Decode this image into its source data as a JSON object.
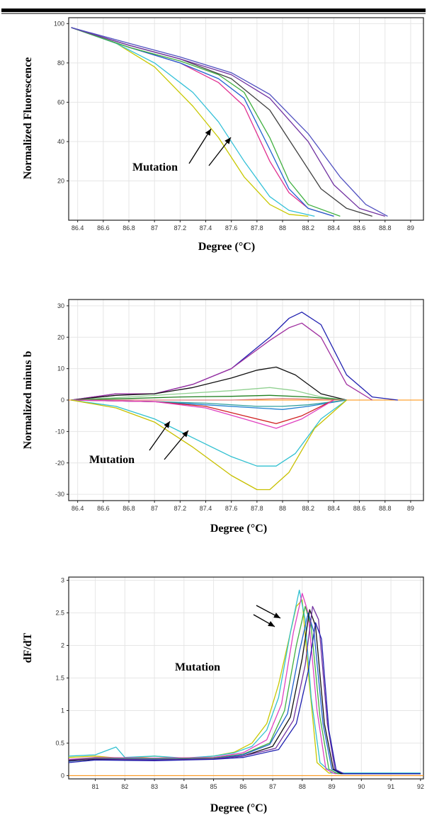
{
  "chart_data": [
    {
      "type": "line",
      "ylabel": "Normalized Fluorescence",
      "xlabel": "Degree (°C)",
      "xlim": [
        86.33,
        89.1
      ],
      "ylim": [
        0,
        103
      ],
      "xticks": [
        "86.4",
        "86.6",
        "86.8",
        "87",
        "87.2",
        "87.4",
        "87.6",
        "87.8",
        "88",
        "88.2",
        "88.4",
        "88.6",
        "88.8",
        "89"
      ],
      "yticks": [
        "20",
        "40",
        "60",
        "80",
        "100"
      ],
      "grid": true,
      "annotation": "Mutation",
      "series": [
        {
          "color": "#c8c800",
          "x": [
            86.35,
            86.7,
            87.0,
            87.3,
            87.5,
            87.7,
            87.9,
            88.05,
            88.2
          ],
          "y": [
            98,
            90,
            78,
            58,
            42,
            22,
            8,
            3,
            2
          ]
        },
        {
          "color": "#33c0d8",
          "x": [
            86.35,
            86.7,
            87.0,
            87.3,
            87.5,
            87.7,
            87.9,
            88.05,
            88.25
          ],
          "y": [
            98,
            90,
            80,
            65,
            50,
            30,
            12,
            5,
            2
          ]
        },
        {
          "color": "#e03090",
          "x": [
            86.35,
            86.8,
            87.2,
            87.5,
            87.7,
            87.9,
            88.05,
            88.2,
            88.4
          ],
          "y": [
            98,
            88,
            80,
            70,
            58,
            30,
            14,
            6,
            2
          ]
        },
        {
          "color": "#2060d0",
          "x": [
            86.35,
            86.8,
            87.2,
            87.5,
            87.7,
            87.9,
            88.05,
            88.2,
            88.4
          ],
          "y": [
            98,
            88,
            80,
            72,
            62,
            36,
            16,
            6,
            2
          ]
        },
        {
          "color": "#40b040",
          "x": [
            86.35,
            86.8,
            87.2,
            87.5,
            87.7,
            87.9,
            88.05,
            88.2,
            88.45
          ],
          "y": [
            98,
            88,
            81,
            74,
            65,
            42,
            20,
            8,
            2
          ]
        },
        {
          "color": "#404040",
          "x": [
            86.35,
            86.8,
            87.2,
            87.6,
            87.9,
            88.1,
            88.3,
            88.5,
            88.7
          ],
          "y": [
            98,
            89,
            82,
            72,
            56,
            36,
            16,
            6,
            2
          ]
        },
        {
          "color": "#7030a0",
          "x": [
            86.35,
            86.8,
            87.2,
            87.6,
            87.9,
            88.2,
            88.4,
            88.6,
            88.8
          ],
          "y": [
            98,
            89,
            82,
            74,
            62,
            40,
            18,
            6,
            2
          ]
        },
        {
          "color": "#5050c0",
          "x": [
            86.35,
            86.8,
            87.2,
            87.6,
            87.9,
            88.2,
            88.45,
            88.65,
            88.82
          ],
          "y": [
            98,
            90,
            83,
            75,
            64,
            44,
            22,
            8,
            2
          ]
        }
      ]
    },
    {
      "type": "line",
      "ylabel": "Normalized minus b",
      "xlabel": "Degree (°C)",
      "xlim": [
        86.33,
        89.1
      ],
      "ylim": [
        -32,
        32
      ],
      "xticks": [
        "86.4",
        "86.6",
        "86.8",
        "87",
        "87.2",
        "87.4",
        "87.6",
        "87.8",
        "88",
        "88.2",
        "88.4",
        "88.6",
        "88.8",
        "89"
      ],
      "yticks": [
        "-30",
        "-20",
        "-10",
        "0",
        "10",
        "20",
        "30"
      ],
      "grid": true,
      "annotation": "Mutation",
      "series": [
        {
          "color": "#2020b0",
          "x": [
            86.35,
            86.7,
            87.0,
            87.3,
            87.6,
            87.9,
            88.05,
            88.15,
            88.3,
            88.5,
            88.7,
            88.9
          ],
          "y": [
            0,
            2,
            2,
            5,
            10,
            20,
            26,
            28,
            24,
            8,
            1,
            0
          ]
        },
        {
          "color": "#a030a0",
          "x": [
            86.35,
            86.7,
            87.0,
            87.3,
            87.6,
            87.9,
            88.05,
            88.15,
            88.3,
            88.5,
            88.7
          ],
          "y": [
            0,
            2,
            2,
            5,
            10,
            19,
            23,
            24.5,
            20,
            5,
            0
          ]
        },
        {
          "color": "#111111",
          "x": [
            86.35,
            86.7,
            87.0,
            87.3,
            87.6,
            87.8,
            87.95,
            88.1,
            88.3,
            88.5
          ],
          "y": [
            0,
            1.5,
            2,
            4,
            7,
            9.5,
            10.5,
            8,
            2,
            0
          ]
        },
        {
          "color": "#90d090",
          "x": [
            86.35,
            86.8,
            87.2,
            87.6,
            87.9,
            88.1,
            88.3,
            88.5
          ],
          "y": [
            0,
            1,
            2,
            3,
            4,
            3,
            1,
            0
          ]
        },
        {
          "color": "#208020",
          "x": [
            86.35,
            86.8,
            87.2,
            87.6,
            87.9,
            88.2,
            88.5
          ],
          "y": [
            0,
            0.5,
            1,
            1.2,
            1.5,
            1,
            0
          ]
        },
        {
          "color": "#e08080",
          "x": [
            86.35,
            87.0,
            87.6,
            88.0,
            88.5
          ],
          "y": [
            0,
            0,
            0,
            0.5,
            0
          ]
        },
        {
          "color": "#2080d0",
          "x": [
            86.35,
            87.0,
            87.4,
            87.8,
            88.0,
            88.2,
            88.5
          ],
          "y": [
            0,
            -0.5,
            -1.5,
            -2.5,
            -3,
            -2,
            0
          ]
        },
        {
          "color": "#30a0a0",
          "x": [
            86.35,
            87.0,
            87.4,
            87.8,
            88.0,
            88.2,
            88.5
          ],
          "y": [
            0,
            -0.5,
            -1,
            -2,
            -2,
            -1.5,
            0
          ]
        },
        {
          "color": "#d02020",
          "x": [
            86.35,
            87.0,
            87.4,
            87.7,
            87.95,
            88.15,
            88.4
          ],
          "y": [
            0,
            -0.5,
            -2,
            -5,
            -7.5,
            -5,
            0
          ]
        },
        {
          "color": "#e040c0",
          "x": [
            86.35,
            87.0,
            87.4,
            87.7,
            87.95,
            88.15,
            88.4
          ],
          "y": [
            0,
            -0.5,
            -2.5,
            -6,
            -9,
            -6,
            0
          ]
        },
        {
          "color": "#30c0d0",
          "x": [
            86.35,
            86.7,
            87.0,
            87.3,
            87.6,
            87.8,
            87.95,
            88.1,
            88.3,
            88.5
          ],
          "y": [
            0,
            -2,
            -6,
            -12,
            -18,
            -21,
            -21,
            -17,
            -6,
            0
          ]
        },
        {
          "color": "#c8c000",
          "x": [
            86.35,
            86.7,
            87.0,
            87.3,
            87.6,
            87.8,
            87.9,
            88.05,
            88.25,
            88.5
          ],
          "y": [
            0,
            -2.5,
            -7,
            -15,
            -24,
            -28.5,
            -28.5,
            -23,
            -9,
            0
          ]
        }
      ]
    },
    {
      "type": "line",
      "ylabel": "dF/dT",
      "xlabel": "Degree (°C)",
      "xlim": [
        80.1,
        92.1
      ],
      "ylim": [
        -0.05,
        3.05
      ],
      "xticks": [
        "81",
        "82",
        "83",
        "84",
        "85",
        "86",
        "87",
        "88",
        "89",
        "90",
        "91",
        "92"
      ],
      "yticks": [
        "0",
        "0.5",
        "1",
        "1.5",
        "2",
        "2.5",
        "3"
      ],
      "grid": true,
      "annotation": "Mutation",
      "series": [
        {
          "color": "#c8c800",
          "x": [
            80.1,
            81,
            82,
            83,
            84,
            85,
            85.7,
            86.3,
            86.8,
            87.2,
            87.5,
            87.8,
            88.0,
            88.2,
            88.5,
            88.9,
            92
          ],
          "y": [
            0.28,
            0.3,
            0.26,
            0.3,
            0.26,
            0.3,
            0.36,
            0.5,
            0.8,
            1.4,
            2.0,
            2.6,
            2.7,
            1.6,
            0.2,
            0.04,
            0.04
          ]
        },
        {
          "color": "#30c0d0",
          "x": [
            80.1,
            81,
            81.7,
            82,
            83,
            84,
            85,
            85.7,
            86.3,
            86.8,
            87.2,
            87.6,
            87.9,
            88.1,
            88.3,
            88.6,
            89,
            92
          ],
          "y": [
            0.3,
            0.32,
            0.44,
            0.28,
            0.3,
            0.27,
            0.3,
            0.35,
            0.45,
            0.7,
            1.2,
            2.2,
            2.85,
            2.4,
            1.2,
            0.2,
            0.04,
            0.04
          ]
        },
        {
          "color": "#e040c0",
          "x": [
            80.1,
            81,
            83,
            85,
            86,
            86.8,
            87.3,
            87.7,
            88.0,
            88.2,
            88.5,
            88.8,
            89.1,
            92
          ],
          "y": [
            0.25,
            0.28,
            0.27,
            0.28,
            0.35,
            0.55,
            1.1,
            2.2,
            2.8,
            2.5,
            1.0,
            0.1,
            0.03,
            0.03
          ]
        },
        {
          "color": "#40b040",
          "x": [
            80.1,
            81,
            83,
            85,
            86,
            86.9,
            87.4,
            87.8,
            88.1,
            88.3,
            88.6,
            88.9,
            89.2,
            92
          ],
          "y": [
            0.24,
            0.27,
            0.26,
            0.27,
            0.33,
            0.5,
            1.0,
            2.0,
            2.6,
            2.3,
            0.9,
            0.1,
            0.03,
            0.03
          ]
        },
        {
          "color": "#2060d0",
          "x": [
            80.1,
            81,
            83,
            85,
            86,
            86.9,
            87.5,
            87.9,
            88.2,
            88.4,
            88.7,
            89.0,
            89.3,
            92
          ],
          "y": [
            0.22,
            0.26,
            0.25,
            0.26,
            0.32,
            0.48,
            0.95,
            1.9,
            2.5,
            2.2,
            0.8,
            0.1,
            0.03,
            0.03
          ]
        },
        {
          "color": "#111111",
          "x": [
            80.1,
            81,
            83,
            85,
            86,
            87.0,
            87.6,
            88.0,
            88.25,
            88.45,
            88.75,
            89.05,
            89.3,
            92
          ],
          "y": [
            0.23,
            0.25,
            0.24,
            0.26,
            0.3,
            0.45,
            0.9,
            1.8,
            2.55,
            2.3,
            0.8,
            0.1,
            0.03,
            0.03
          ]
        },
        {
          "color": "#7030a0",
          "x": [
            80.1,
            81,
            83,
            85,
            86,
            87.1,
            87.7,
            88.1,
            88.35,
            88.55,
            88.85,
            89.1,
            89.4,
            92
          ],
          "y": [
            0.24,
            0.26,
            0.24,
            0.26,
            0.3,
            0.42,
            0.85,
            1.7,
            2.6,
            2.4,
            0.8,
            0.1,
            0.03,
            0.03
          ]
        },
        {
          "color": "#2020b0",
          "x": [
            80.1,
            81,
            83,
            85,
            86,
            87.2,
            87.8,
            88.2,
            88.45,
            88.65,
            88.9,
            89.15,
            89.4,
            92
          ],
          "y": [
            0.2,
            0.24,
            0.23,
            0.25,
            0.28,
            0.4,
            0.8,
            1.6,
            2.35,
            2.1,
            0.7,
            0.08,
            0.03,
            0.03
          ]
        }
      ]
    }
  ]
}
